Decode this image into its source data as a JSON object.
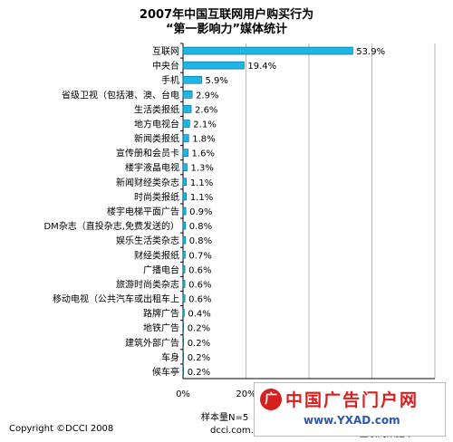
{
  "chart_data": {
    "type": "bar",
    "orientation": "horizontal",
    "title": "2007年中国互联网用户购买行为",
    "subtitle": "“第一影响力”媒体统计",
    "categories": [
      "互联网",
      "中央台",
      "手机",
      "省级卫视（包括港、澳、台电",
      "生活类报纸",
      "地方电视台",
      "新闻类报纸",
      "宣传册和会员卡",
      "楼宇液晶电视",
      "新闻财经类杂志",
      "时尚类报纸",
      "楼宇电梯平面广告",
      "DM杂志（直投杂志,免费发送的）",
      "娱乐生活类杂志",
      "财经类报纸",
      "广播电台",
      "旅游时尚类杂志",
      "移动电视（公共汽车或出租车上",
      "路牌广告",
      "地铁广告",
      "建筑外部广告",
      "车身",
      "候车亭"
    ],
    "values": [
      53.9,
      19.4,
      5.9,
      2.9,
      2.6,
      2.1,
      1.8,
      1.6,
      1.3,
      1.1,
      1.1,
      0.9,
      0.8,
      0.8,
      0.7,
      0.6,
      0.6,
      0.6,
      0.4,
      0.2,
      0.2,
      0.2,
      0.2
    ],
    "value_labels": [
      "53.9%",
      "19.4%",
      "5.9%",
      "2.9%",
      "2.6%",
      "2.1%",
      "1.8%",
      "1.6%",
      "1.3%",
      "1.1%",
      "1.1%",
      "0.9%",
      "0.8%",
      "0.8%",
      "0.7%",
      "0.6%",
      "0.6%",
      "0.6%",
      "0.4%",
      "0.2%",
      "0.2%",
      "0.2%",
      "0.2%"
    ],
    "xlim": [
      0,
      80
    ],
    "x_ticks": [
      0,
      20
    ],
    "x_tick_labels": [
      "0%",
      "20%"
    ],
    "grid": true,
    "bar_color": "#19b8e6"
  },
  "footer": {
    "copyright": "Copyright ©DCCI 2008",
    "sample": "样本量N=5",
    "site_left": "dcci.com.cn",
    "site_right": "DCCI互联网数据中"
  },
  "watermark": {
    "name": "中国广告门户网",
    "url": "www.YXAD.com"
  }
}
